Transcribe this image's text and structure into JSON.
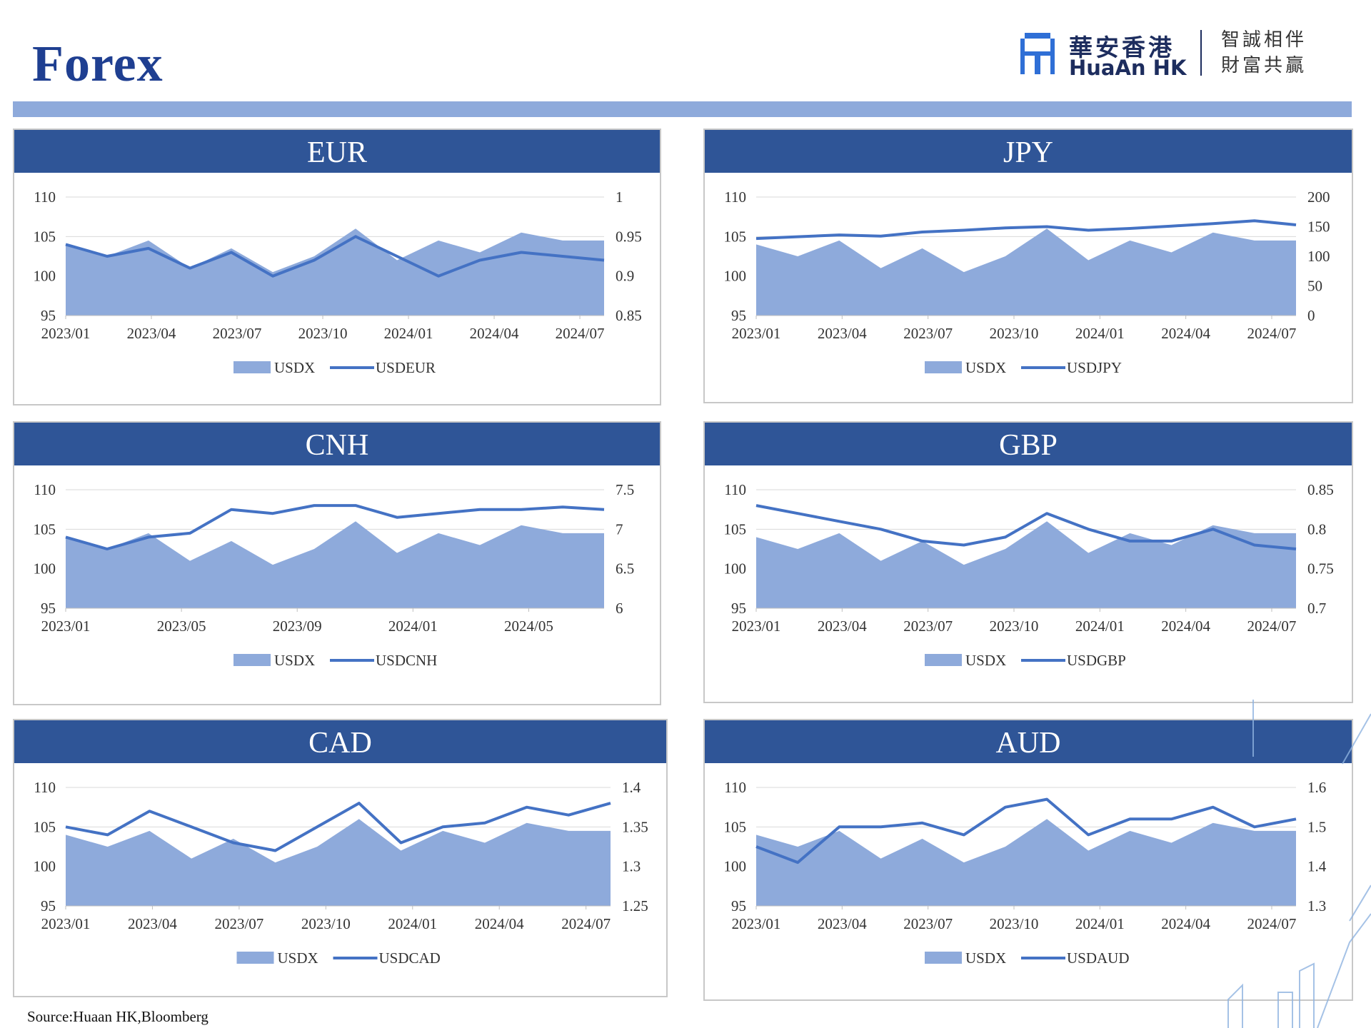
{
  "page": {
    "title": "Forex",
    "source": "Source:Huaan HK,Bloomberg"
  },
  "logo": {
    "name_cn": "華安香港",
    "name_en": "HuaAn HK",
    "slogan_line1": "智誠相伴",
    "slogan_line2": "財富共贏"
  },
  "colors": {
    "header": "#2f5597",
    "area": "#8eaadb",
    "line": "#4472c4",
    "title": "#1f3f91"
  },
  "panels": [
    {
      "id": "eur",
      "header": "EUR",
      "type": "area+line",
      "left_axis": {
        "ticks": [
          "110",
          "105",
          "100",
          "95"
        ],
        "min": 95,
        "max": 110
      },
      "right_axis": {
        "ticks": [
          "1",
          "0.95",
          "0.9",
          "0.85"
        ],
        "min": 0.85,
        "max": 1.0
      },
      "x_ticks": [
        "2023/01",
        "2023/04",
        "2023/07",
        "2023/10",
        "2024/01",
        "2024/04",
        "2024/07"
      ],
      "legend": [
        "USDX",
        "USDEUR"
      ],
      "series": [
        {
          "name": "USDX",
          "axis": "left",
          "values": [
            104,
            102.5,
            104.5,
            101,
            103.5,
            100.5,
            102.5,
            106,
            102,
            104.5,
            103,
            105.5,
            104.5,
            104.5
          ]
        },
        {
          "name": "USDEUR",
          "axis": "right",
          "values": [
            0.94,
            0.925,
            0.935,
            0.91,
            0.93,
            0.9,
            0.92,
            0.95,
            0.925,
            0.9,
            0.92,
            0.93,
            0.925,
            0.92
          ]
        }
      ]
    },
    {
      "id": "jpy",
      "header": "JPY",
      "type": "area+line",
      "left_axis": {
        "ticks": [
          "110",
          "105",
          "100",
          "95"
        ],
        "min": 95,
        "max": 110
      },
      "right_axis": {
        "ticks": [
          "200",
          "150",
          "100",
          "50",
          "0"
        ],
        "min": 0,
        "max": 200
      },
      "x_ticks": [
        "2023/01",
        "2023/04",
        "2023/07",
        "2023/10",
        "2024/01",
        "2024/04",
        "2024/07"
      ],
      "legend": [
        "USDX",
        "USDJPY"
      ],
      "series": [
        {
          "name": "USDX",
          "axis": "left",
          "values": [
            104,
            102.5,
            104.5,
            101,
            103.5,
            100.5,
            102.5,
            106,
            102,
            104.5,
            103,
            105.5,
            104.5,
            104.5
          ]
        },
        {
          "name": "USDJPY",
          "axis": "right",
          "values": [
            130,
            133,
            136,
            134,
            141,
            144,
            148,
            150,
            144,
            147,
            151,
            155,
            160,
            153
          ]
        }
      ]
    },
    {
      "id": "cnh",
      "header": "CNH",
      "type": "area+line",
      "left_axis": {
        "ticks": [
          "110",
          "105",
          "100",
          "95"
        ],
        "min": 95,
        "max": 110
      },
      "right_axis": {
        "ticks": [
          "7.5",
          "7",
          "6.5",
          "6"
        ],
        "min": 6,
        "max": 7.5
      },
      "x_ticks": [
        "2023/01",
        "2023/05",
        "2023/09",
        "2024/01",
        "2024/05"
      ],
      "legend": [
        "USDX",
        "USDCNH"
      ],
      "series": [
        {
          "name": "USDX",
          "axis": "left",
          "values": [
            104,
            102.5,
            104.5,
            101,
            103.5,
            100.5,
            102.5,
            106,
            102,
            104.5,
            103,
            105.5,
            104.5,
            104.5
          ]
        },
        {
          "name": "USDCNH",
          "axis": "right",
          "values": [
            6.9,
            6.75,
            6.9,
            6.95,
            7.25,
            7.2,
            7.3,
            7.3,
            7.15,
            7.2,
            7.25,
            7.25,
            7.28,
            7.25
          ]
        }
      ]
    },
    {
      "id": "gbp",
      "header": "GBP",
      "type": "area+line",
      "left_axis": {
        "ticks": [
          "110",
          "105",
          "100",
          "95"
        ],
        "min": 95,
        "max": 110
      },
      "right_axis": {
        "ticks": [
          "0.85",
          "0.8",
          "0.75",
          "0.7"
        ],
        "min": 0.7,
        "max": 0.85
      },
      "x_ticks": [
        "2023/01",
        "2023/04",
        "2023/07",
        "2023/10",
        "2024/01",
        "2024/04",
        "2024/07"
      ],
      "legend": [
        "USDX",
        "USDGBP"
      ],
      "series": [
        {
          "name": "USDX",
          "axis": "left",
          "values": [
            104,
            102.5,
            104.5,
            101,
            103.5,
            100.5,
            102.5,
            106,
            102,
            104.5,
            103,
            105.5,
            104.5,
            104.5
          ]
        },
        {
          "name": "USDGBP",
          "axis": "right",
          "values": [
            0.83,
            0.82,
            0.81,
            0.8,
            0.785,
            0.78,
            0.79,
            0.82,
            0.8,
            0.785,
            0.785,
            0.8,
            0.78,
            0.775
          ]
        }
      ]
    },
    {
      "id": "cad",
      "header": "CAD",
      "type": "area+line",
      "left_axis": {
        "ticks": [
          "110",
          "105",
          "100",
          "95"
        ],
        "min": 95,
        "max": 110
      },
      "right_axis": {
        "ticks": [
          "1.4",
          "1.35",
          "1.3",
          "1.25"
        ],
        "min": 1.25,
        "max": 1.4
      },
      "x_ticks": [
        "2023/01",
        "2023/04",
        "2023/07",
        "2023/10",
        "2024/01",
        "2024/04",
        "2024/07"
      ],
      "legend": [
        "USDX",
        "USDCAD"
      ],
      "series": [
        {
          "name": "USDX",
          "axis": "left",
          "values": [
            104,
            102.5,
            104.5,
            101,
            103.5,
            100.5,
            102.5,
            106,
            102,
            104.5,
            103,
            105.5,
            104.5,
            104.5
          ]
        },
        {
          "name": "USDCAD",
          "axis": "right",
          "values": [
            1.35,
            1.34,
            1.37,
            1.35,
            1.33,
            1.32,
            1.35,
            1.38,
            1.33,
            1.35,
            1.355,
            1.375,
            1.365,
            1.38
          ]
        }
      ]
    },
    {
      "id": "aud",
      "header": "AUD",
      "type": "area+line",
      "left_axis": {
        "ticks": [
          "110",
          "105",
          "100",
          "95"
        ],
        "min": 95,
        "max": 110
      },
      "right_axis": {
        "ticks": [
          "1.6",
          "1.5",
          "1.4",
          "1.3"
        ],
        "min": 1.3,
        "max": 1.6
      },
      "x_ticks": [
        "2023/01",
        "2023/04",
        "2023/07",
        "2023/10",
        "2024/01",
        "2024/04",
        "2024/07"
      ],
      "legend": [
        "USDX",
        "USDAUD"
      ],
      "series": [
        {
          "name": "USDX",
          "axis": "left",
          "values": [
            104,
            102.5,
            104.5,
            101,
            103.5,
            100.5,
            102.5,
            106,
            102,
            104.5,
            103,
            105.5,
            104.5,
            104.5
          ]
        },
        {
          "name": "USDAUD",
          "axis": "right",
          "values": [
            1.45,
            1.41,
            1.5,
            1.5,
            1.51,
            1.48,
            1.55,
            1.57,
            1.48,
            1.52,
            1.52,
            1.55,
            1.5,
            1.52
          ]
        }
      ]
    }
  ]
}
